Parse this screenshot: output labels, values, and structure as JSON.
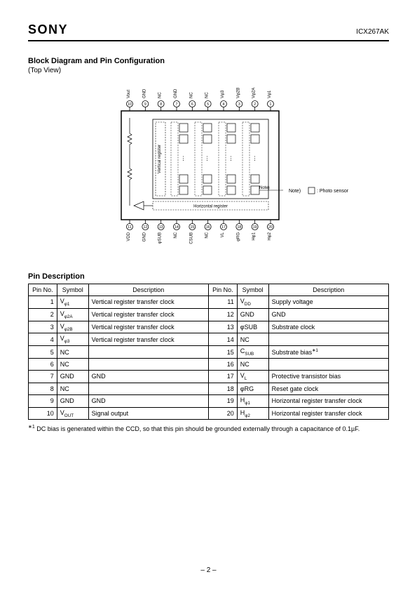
{
  "header": {
    "brand": "SONY",
    "part_no": "ICX267AK"
  },
  "section1": {
    "title": "Block Diagram and Pin Configuration",
    "subtitle": "(Top View)"
  },
  "diagram": {
    "outer_border_color": "#000000",
    "inner_line_color": "#000000",
    "background": "#ffffff",
    "top_pins": [
      {
        "n": "10",
        "label": "Vout"
      },
      {
        "n": "9",
        "label": "GND"
      },
      {
        "n": "8",
        "label": "NC"
      },
      {
        "n": "7",
        "label": "GND"
      },
      {
        "n": "6",
        "label": "NC"
      },
      {
        "n": "5",
        "label": "NC"
      },
      {
        "n": "4",
        "label": "Vφ3"
      },
      {
        "n": "3",
        "label": "Vφ2B"
      },
      {
        "n": "2",
        "label": "Vφ2A"
      },
      {
        "n": "1",
        "label": "Vφ1"
      }
    ],
    "bottom_pins": [
      {
        "n": "11",
        "label": "VDD"
      },
      {
        "n": "12",
        "label": "GND"
      },
      {
        "n": "13",
        "label": "φSUB"
      },
      {
        "n": "14",
        "label": "NC"
      },
      {
        "n": "15",
        "label": "CSUB"
      },
      {
        "n": "16",
        "label": "NC"
      },
      {
        "n": "17",
        "label": "VL"
      },
      {
        "n": "18",
        "label": "φRG"
      },
      {
        "n": "19",
        "label": "Hφ1"
      },
      {
        "n": "20",
        "label": "Hφ2"
      }
    ],
    "vertical_register_label": "Vertical register",
    "horizontal_register_label": "Horizontal register",
    "note_text": "Note)",
    "legend_text": ": Photo sensor"
  },
  "section2": {
    "title": "Pin Description"
  },
  "table": {
    "headers": {
      "pin": "Pin No.",
      "symbol": "Symbol",
      "desc": "Description"
    },
    "rows_left": [
      {
        "pin": "1",
        "symbol_html": "V<sub>φ1</sub>",
        "desc": "Vertical register transfer clock"
      },
      {
        "pin": "2",
        "symbol_html": "V<sub>φ2A</sub>",
        "desc": "Vertical register transfer clock"
      },
      {
        "pin": "3",
        "symbol_html": "V<sub>φ2B</sub>",
        "desc": "Vertical register transfer clock"
      },
      {
        "pin": "4",
        "symbol_html": "V<sub>φ3</sub>",
        "desc": "Vertical register transfer clock"
      },
      {
        "pin": "5",
        "symbol_html": "NC",
        "desc": ""
      },
      {
        "pin": "6",
        "symbol_html": "NC",
        "desc": ""
      },
      {
        "pin": "7",
        "symbol_html": "GND",
        "desc": "GND"
      },
      {
        "pin": "8",
        "symbol_html": "NC",
        "desc": ""
      },
      {
        "pin": "9",
        "symbol_html": "GND",
        "desc": "GND"
      },
      {
        "pin": "10",
        "symbol_html": "V<sub>OUT</sub>",
        "desc": "Signal output"
      }
    ],
    "rows_right": [
      {
        "pin": "11",
        "symbol_html": "V<sub>DD</sub>",
        "desc": "Supply voltage"
      },
      {
        "pin": "12",
        "symbol_html": "GND",
        "desc": "GND"
      },
      {
        "pin": "13",
        "symbol_html": "φSUB",
        "desc": "Substrate clock"
      },
      {
        "pin": "14",
        "symbol_html": "NC",
        "desc": ""
      },
      {
        "pin": "15",
        "symbol_html": "C<sub>SUB</sub>",
        "desc": "Substrate bias<sup class=\"ast\">∗1</sup>"
      },
      {
        "pin": "16",
        "symbol_html": "NC",
        "desc": ""
      },
      {
        "pin": "17",
        "symbol_html": "V<sub>L</sub>",
        "desc": "Protective transistor bias"
      },
      {
        "pin": "18",
        "symbol_html": "φRG",
        "desc": "Reset gate clock"
      },
      {
        "pin": "19",
        "symbol_html": "H<sub>φ1</sub>",
        "desc": "Horizontal register transfer clock"
      },
      {
        "pin": "20",
        "symbol_html": "H<sub>φ2</sub>",
        "desc": "Horizontal register transfer clock"
      }
    ]
  },
  "footnote": {
    "marker": "∗1",
    "text": "DC bias is generated within the CCD, so that this pin should be grounded externally through a capacitance of 0.1µF."
  },
  "page_number": "– 2 –"
}
